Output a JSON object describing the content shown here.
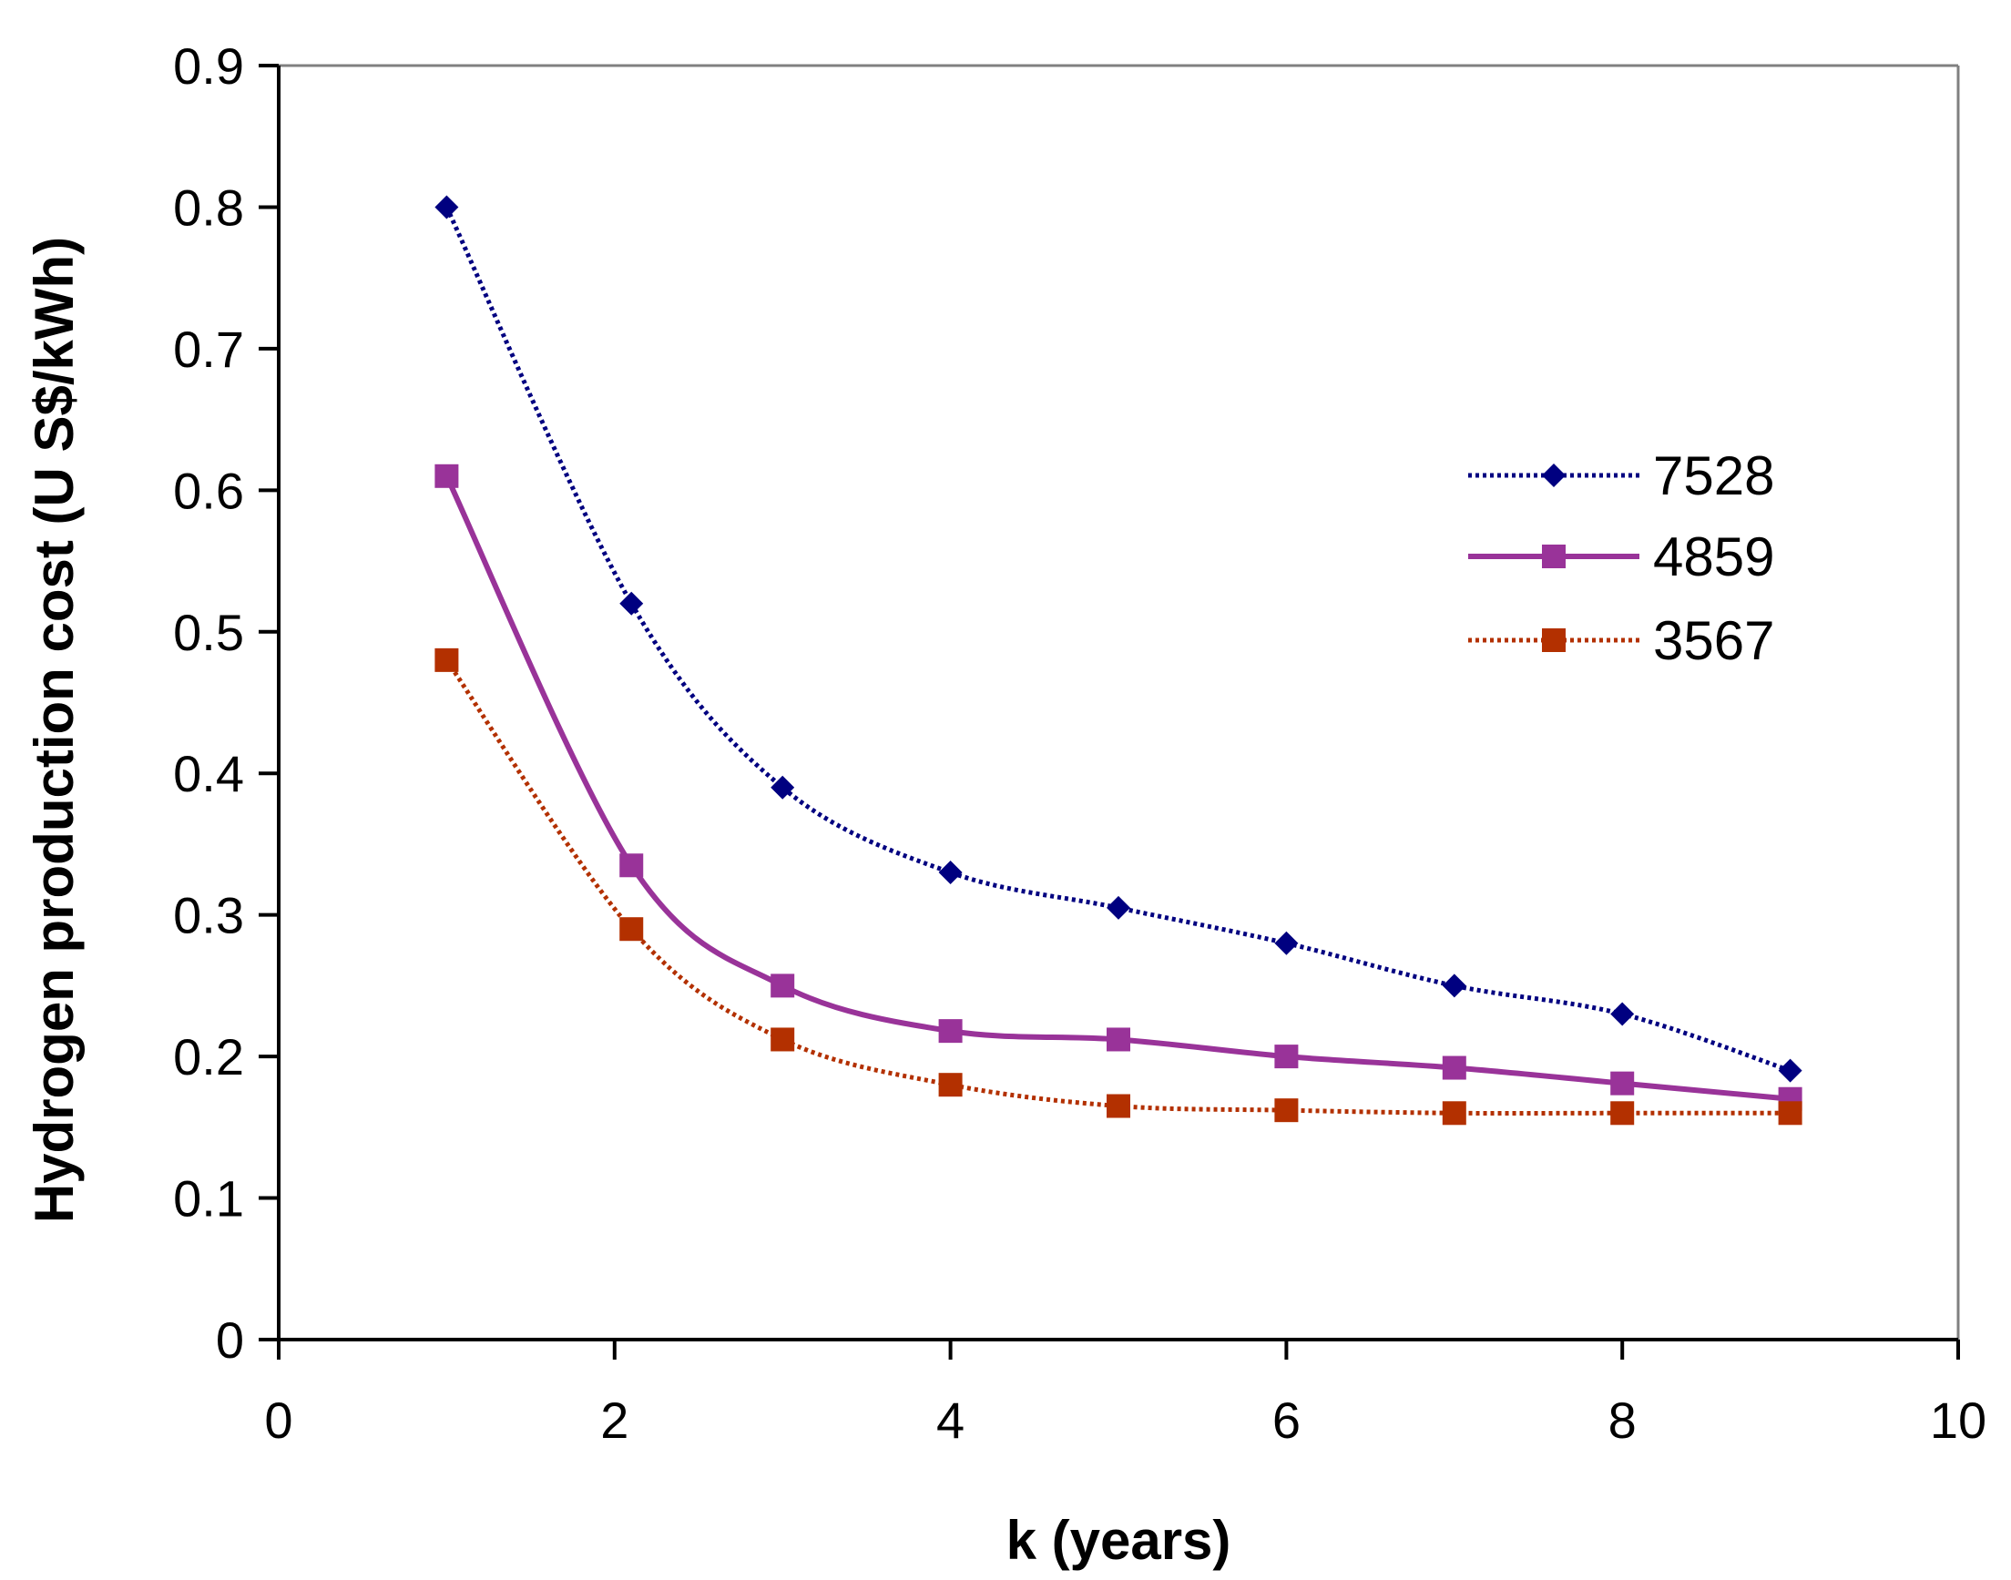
{
  "chart_data": {
    "type": "line",
    "title": "",
    "xlabel": "k (years)",
    "ylabel": "Hydrogen production cost (U S$/kWh)",
    "xlim": [
      0,
      10
    ],
    "ylim": [
      0,
      0.9
    ],
    "xticks": [
      0,
      2,
      4,
      6,
      8,
      10
    ],
    "xtick_labels": [
      "0",
      "2",
      "4",
      "6",
      "8",
      "10"
    ],
    "yticks": [
      0,
      0.1,
      0.2,
      0.3,
      0.4,
      0.5,
      0.6,
      0.7,
      0.8,
      0.9
    ],
    "ytick_labels": [
      "0",
      "0.1",
      "0.2",
      "0.3",
      "0.4",
      "0.5",
      "0.6",
      "0.7",
      "0.8",
      "0.9"
    ],
    "grid": false,
    "legend_position": "right",
    "series": [
      {
        "name": "7528",
        "color": "#000080",
        "marker": "diamond",
        "line_style": "dotted",
        "x": [
          1,
          2.1,
          3,
          4,
          5,
          6,
          7,
          8,
          9
        ],
        "y": [
          0.8,
          0.52,
          0.39,
          0.33,
          0.305,
          0.28,
          0.25,
          0.23,
          0.19
        ]
      },
      {
        "name": "4859",
        "color": "#993399",
        "marker": "square",
        "line_style": "solid",
        "x": [
          1,
          2.1,
          3,
          4,
          5,
          6,
          7,
          8,
          9
        ],
        "y": [
          0.61,
          0.335,
          0.25,
          0.218,
          0.212,
          0.2,
          0.192,
          0.181,
          0.17
        ]
      },
      {
        "name": "3567",
        "color": "#B33000",
        "marker": "square",
        "line_style": "dotted",
        "x": [
          1,
          2.1,
          3,
          4,
          5,
          6,
          7,
          8,
          9
        ],
        "y": [
          0.48,
          0.29,
          0.212,
          0.18,
          0.165,
          0.162,
          0.16,
          0.16,
          0.16
        ]
      }
    ]
  }
}
